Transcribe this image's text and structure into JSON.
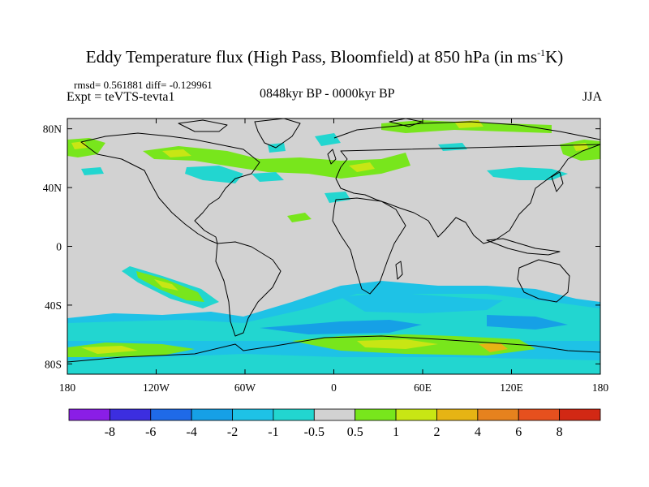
{
  "title": {
    "main": "Eddy Temperature flux (High Pass, Bloomfield) at 850 hPa (in ms",
    "exponent": "-1",
    "unit_end": "K)"
  },
  "stats_line": "rmsd= 0.561881 diff= -0.129961",
  "expt_line": "Expt = teVTS-tevta1",
  "period": "0848kyr BP - 0000kyr BP",
  "season": "JJA",
  "axes": {
    "lon_labels": [
      "180",
      "120W",
      "60W",
      "0",
      "60E",
      "120E",
      "180"
    ],
    "lat_labels": [
      "80N",
      "40N",
      "0",
      "40S",
      "80S"
    ]
  },
  "colorbar": {
    "levels": [
      "-8",
      "-6",
      "-4",
      "-2",
      "-1",
      "-0.5",
      "0.5",
      "1",
      "2",
      "4",
      "6",
      "8"
    ],
    "colors": [
      "#8a1ee6",
      "#3c2ee0",
      "#1f6ae8",
      "#16a0e6",
      "#1ec2e6",
      "#22d6d0",
      "#d2d2d2",
      "#78e61c",
      "#c8e614",
      "#e6b414",
      "#e6821e",
      "#e6501e",
      "#d22814"
    ]
  },
  "background_color": "#d2d2d2"
}
